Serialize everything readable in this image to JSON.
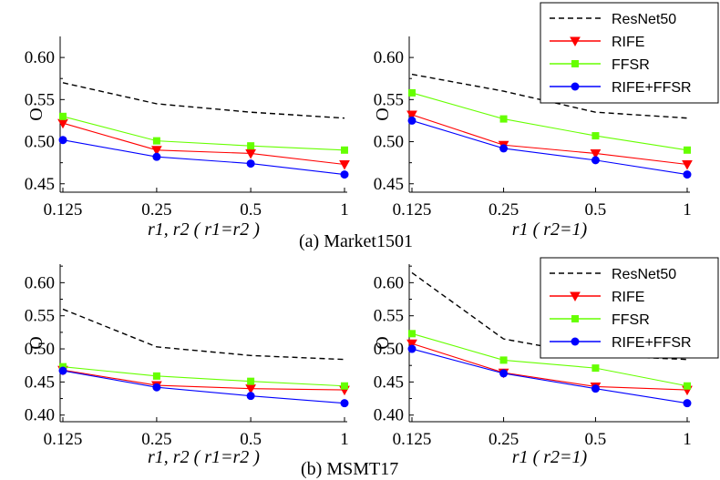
{
  "colors": {
    "ResNet50": "#000000",
    "RIFE": "#ff0000",
    "FFSR": "#66ff00",
    "RIFE+FFSR": "#0000ff"
  },
  "captions": {
    "market": "(a) Market1501",
    "msmt": "(b) MSMT17"
  },
  "legend": {
    "entries": [
      "ResNet50",
      "RIFE",
      "FFSR",
      "RIFE+FFSR"
    ]
  },
  "chart_data": [
    {
      "type": "line",
      "panel": "market-left",
      "ylabel": "O",
      "xlabel": "r1, r2 ( r1=r2 )",
      "x": [
        "0.125",
        "0.25",
        "0.5",
        "1"
      ],
      "yticks": [
        "0.45",
        "0.50",
        "0.55",
        "0.60"
      ],
      "ylim": [
        0.44,
        0.625
      ],
      "series": [
        {
          "name": "ResNet50",
          "values": [
            0.57,
            0.545,
            0.535,
            0.528
          ]
        },
        {
          "name": "RIFE",
          "values": [
            0.522,
            0.49,
            0.486,
            0.473
          ]
        },
        {
          "name": "FFSR",
          "values": [
            0.53,
            0.501,
            0.495,
            0.49
          ]
        },
        {
          "name": "RIFE+FFSR",
          "values": [
            0.502,
            0.482,
            0.474,
            0.461
          ]
        }
      ]
    },
    {
      "type": "line",
      "panel": "market-right",
      "ylabel": "O",
      "xlabel": "r1 ( r2=1)",
      "x": [
        "0.125",
        "0.25",
        "0.5",
        "1"
      ],
      "yticks": [
        "0.45",
        "0.50",
        "0.55",
        "0.60"
      ],
      "ylim": [
        0.44,
        0.625
      ],
      "series": [
        {
          "name": "ResNet50",
          "values": [
            0.58,
            0.56,
            0.535,
            0.528
          ]
        },
        {
          "name": "RIFE",
          "values": [
            0.532,
            0.496,
            0.486,
            0.473
          ]
        },
        {
          "name": "FFSR",
          "values": [
            0.558,
            0.527,
            0.507,
            0.49
          ]
        },
        {
          "name": "RIFE+FFSR",
          "values": [
            0.525,
            0.492,
            0.478,
            0.461
          ]
        }
      ]
    },
    {
      "type": "line",
      "panel": "msmt-left",
      "ylabel": "O",
      "xlabel": "r1, r2 ( r1=r2 )",
      "x": [
        "0.125",
        "0.25",
        "0.5",
        "1"
      ],
      "yticks": [
        "0.40",
        "0.45",
        "0.50",
        "0.55",
        "0.60"
      ],
      "ylim": [
        0.39,
        0.628
      ],
      "series": [
        {
          "name": "ResNet50",
          "values": [
            0.56,
            0.503,
            0.49,
            0.484
          ]
        },
        {
          "name": "RIFE",
          "values": [
            0.468,
            0.445,
            0.44,
            0.438
          ]
        },
        {
          "name": "FFSR",
          "values": [
            0.473,
            0.459,
            0.451,
            0.444
          ]
        },
        {
          "name": "RIFE+FFSR",
          "values": [
            0.467,
            0.442,
            0.429,
            0.418
          ]
        }
      ]
    },
    {
      "type": "line",
      "panel": "msmt-right",
      "ylabel": "O",
      "xlabel": "r1 ( r2=1)",
      "x": [
        "0.125",
        "0.25",
        "0.5",
        "1"
      ],
      "yticks": [
        "0.40",
        "0.45",
        "0.50",
        "0.55",
        "0.60"
      ],
      "ylim": [
        0.39,
        0.628
      ],
      "series": [
        {
          "name": "ResNet50",
          "values": [
            0.615,
            0.515,
            0.49,
            0.484
          ]
        },
        {
          "name": "RIFE",
          "values": [
            0.508,
            0.464,
            0.443,
            0.438
          ]
        },
        {
          "name": "FFSR",
          "values": [
            0.523,
            0.483,
            0.471,
            0.444
          ]
        },
        {
          "name": "RIFE+FFSR",
          "values": [
            0.5,
            0.463,
            0.44,
            0.418
          ]
        }
      ]
    }
  ]
}
